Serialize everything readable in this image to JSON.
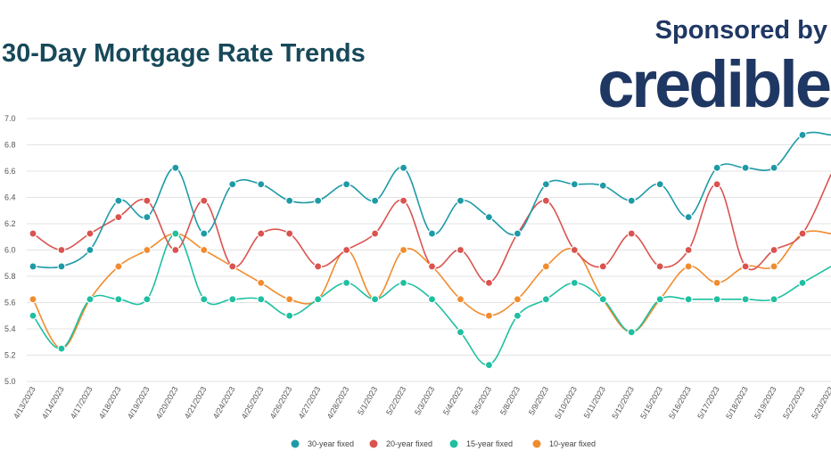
{
  "header": {
    "title": "30-Day Mortgage Rate Trends",
    "sponsor_label": "Sponsored by",
    "brand": "credible"
  },
  "chart_data": {
    "type": "line",
    "title": "30-Day Mortgage Rate Trends",
    "xlabel": "",
    "ylabel": "",
    "ylim": [
      5.0,
      7.0
    ],
    "yticks": [
      "7.0",
      "6.8",
      "6.6",
      "6.4",
      "6.2",
      "6.0",
      "5.8",
      "5.6",
      "5.4",
      "5.2",
      "5.0"
    ],
    "grid": true,
    "legend_position": "bottom",
    "categories": [
      "4/13/2023",
      "4/14/2023",
      "4/17/2023",
      "4/18/2023",
      "4/19/2023",
      "4/20/2023",
      "4/21/2023",
      "4/24/2023",
      "4/25/2023",
      "4/26/2023",
      "4/27/2023",
      "4/28/2023",
      "5/1/2023",
      "5/2/2023",
      "5/3/2023",
      "5/4/2023",
      "5/5/2023",
      "5/8/2023",
      "5/9/2023",
      "5/10/2023",
      "5/11/2023",
      "5/12/2023",
      "5/15/2023",
      "5/16/2023",
      "5/17/2023",
      "5/18/2023",
      "5/19/2023",
      "5/22/2023",
      "5/23/2023"
    ],
    "series": [
      {
        "name": "30-year fixed",
        "color": "#1e9aa6",
        "values": [
          5.875,
          5.875,
          6.0,
          6.375,
          6.25,
          6.625,
          6.125,
          6.5,
          6.5,
          6.375,
          6.375,
          6.5,
          6.375,
          6.625,
          6.125,
          6.375,
          6.25,
          6.125,
          6.5,
          6.5,
          6.49,
          6.375,
          6.5,
          6.25,
          6.625,
          6.625,
          6.625,
          6.875,
          6.875
        ]
      },
      {
        "name": "20-year fixed",
        "color": "#d9534f",
        "values": [
          6.125,
          6.0,
          6.125,
          6.25,
          6.375,
          6.0,
          6.375,
          5.875,
          6.125,
          6.125,
          5.875,
          6.0,
          6.125,
          6.375,
          5.875,
          6.0,
          5.75,
          6.125,
          6.375,
          6.0,
          5.875,
          6.125,
          5.875,
          6.0,
          6.5,
          5.875,
          6.0,
          6.125,
          6.575
        ]
      },
      {
        "name": "15-year fixed",
        "color": "#1fbfa0",
        "values": [
          5.5,
          5.25,
          5.625,
          5.625,
          5.625,
          6.125,
          5.625,
          5.625,
          5.625,
          5.5,
          5.625,
          5.75,
          5.625,
          5.75,
          5.625,
          5.375,
          5.125,
          5.5,
          5.625,
          5.75,
          5.625,
          5.375,
          5.625,
          5.625,
          5.625,
          5.625,
          5.625,
          5.75,
          5.875
        ]
      },
      {
        "name": "10-year fixed",
        "color": "#f08c2e",
        "values": [
          5.625,
          5.25,
          5.625,
          5.875,
          6.0,
          6.125,
          6.0,
          5.875,
          5.75,
          5.625,
          5.625,
          6.0,
          5.625,
          6.0,
          5.875,
          5.625,
          5.5,
          5.625,
          5.875,
          6.0,
          5.625,
          5.375,
          5.625,
          5.875,
          5.75,
          5.875,
          5.875,
          6.125,
          6.125
        ]
      }
    ]
  }
}
